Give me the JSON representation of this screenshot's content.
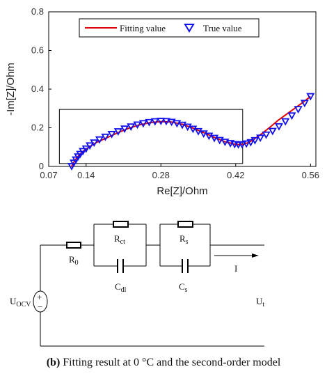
{
  "chart_data": {
    "type": "scatter",
    "xlabel": "Re[Z]/Ohm",
    "ylabel": "-Im[Z]/Ohm",
    "xlim": [
      0.07,
      0.57
    ],
    "ylim": [
      0,
      0.8
    ],
    "xticks": [
      "0.07",
      "0.14",
      "0.28",
      "0.42",
      "0.56"
    ],
    "xtick_values": [
      0.07,
      0.14,
      0.28,
      0.42,
      0.56
    ],
    "yticks": [
      "0",
      "0.2",
      "0.4",
      "0.6",
      "0.8"
    ],
    "ytick_values": [
      0,
      0.2,
      0.4,
      0.6,
      0.8
    ],
    "grid": false,
    "legend_position": "top",
    "inset_box": {
      "x0": 0.09,
      "x1": 0.433,
      "y0": 0.015,
      "y1": 0.295
    },
    "series": [
      {
        "name": "Fitting value",
        "kind": "line",
        "color": "#e00000",
        "x": [
          0.113,
          0.117,
          0.122,
          0.128,
          0.135,
          0.145,
          0.16,
          0.18,
          0.2,
          0.22,
          0.24,
          0.26,
          0.28,
          0.3,
          0.32,
          0.34,
          0.36,
          0.38,
          0.4,
          0.415,
          0.425,
          0.435,
          0.445,
          0.455,
          0.47,
          0.485,
          0.5,
          0.515,
          0.53,
          0.545,
          0.56
        ],
        "y": [
          0.0,
          0.022,
          0.042,
          0.062,
          0.08,
          0.1,
          0.125,
          0.15,
          0.175,
          0.198,
          0.215,
          0.227,
          0.232,
          0.23,
          0.218,
          0.198,
          0.175,
          0.15,
          0.128,
          0.117,
          0.113,
          0.115,
          0.125,
          0.142,
          0.172,
          0.205,
          0.24,
          0.27,
          0.3,
          0.33,
          0.362
        ]
      },
      {
        "name": "True value",
        "kind": "marker",
        "color": "#1010ee",
        "x": [
          0.113,
          0.117,
          0.121,
          0.125,
          0.129,
          0.134,
          0.14,
          0.147,
          0.155,
          0.165,
          0.176,
          0.188,
          0.2,
          0.212,
          0.224,
          0.236,
          0.247,
          0.258,
          0.269,
          0.28,
          0.29,
          0.3,
          0.31,
          0.32,
          0.33,
          0.34,
          0.35,
          0.36,
          0.37,
          0.38,
          0.39,
          0.4,
          0.41,
          0.418,
          0.425,
          0.432,
          0.44,
          0.448,
          0.456,
          0.466,
          0.477,
          0.489,
          0.501,
          0.513,
          0.525,
          0.537,
          0.549,
          0.56
        ],
        "y": [
          0.0,
          0.018,
          0.034,
          0.05,
          0.063,
          0.078,
          0.091,
          0.107,
          0.122,
          0.138,
          0.152,
          0.166,
          0.18,
          0.194,
          0.205,
          0.215,
          0.222,
          0.228,
          0.232,
          0.234,
          0.233,
          0.229,
          0.222,
          0.214,
          0.204,
          0.193,
          0.181,
          0.169,
          0.157,
          0.146,
          0.135,
          0.126,
          0.119,
          0.114,
          0.112,
          0.113,
          0.117,
          0.124,
          0.134,
          0.147,
          0.163,
          0.182,
          0.206,
          0.232,
          0.262,
          0.295,
          0.327,
          0.362
        ]
      }
    ]
  },
  "circuit": {
    "labels": {
      "r0_main": "R",
      "r0_sub": "0",
      "rct_main": "R",
      "rct_sub": "ct",
      "rs_main": "R",
      "rs_sub": "s",
      "cdl_main": "C",
      "cdl_sub": "dl",
      "cs_main": "C",
      "cs_sub": "s",
      "current": "I",
      "uocv_main": "U",
      "uocv_sub": "OCV",
      "ut_main": "U",
      "ut_sub": "t",
      "plus": "+",
      "minus": "−"
    }
  },
  "caption": {
    "label": "(b)",
    "text": " Fitting result at 0 °C and the second-order model"
  }
}
